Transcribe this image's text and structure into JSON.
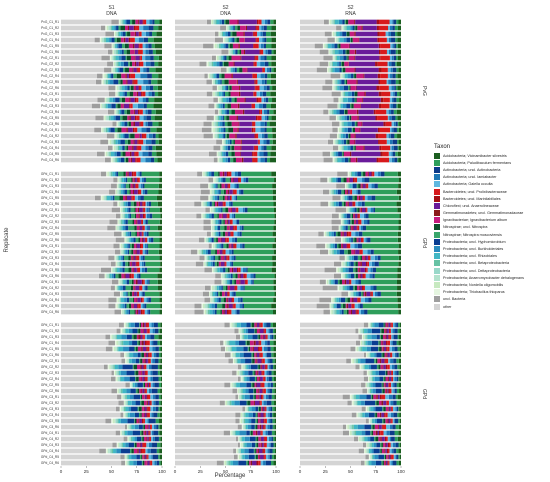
{
  "chart_data": {
    "type": "bar",
    "orientation": "horizontal",
    "stacked": true,
    "xlabel": "Percentage",
    "ylabel": "Replicate",
    "xlim": [
      0,
      100
    ],
    "x_ticks": [
      "0",
      "25",
      "50",
      "75",
      "100"
    ],
    "columns": [
      {
        "strip1": "S1",
        "strip2": "DNA"
      },
      {
        "strip1": "S2",
        "strip2": "DNA"
      },
      {
        "strip1": "S2",
        "strip2": "RNA"
      }
    ],
    "rows": [
      "PvG",
      "GPd",
      "GPd"
    ],
    "row_replicates": [
      [
        "PvG_C1_R1",
        "PvG_C1_R2",
        "PvG_C1_R3",
        "PvG_C1_R4",
        "PvG_C1_R5",
        "PvG_C1_R6",
        "PvG_C2_R1",
        "PvG_C2_R2",
        "PvG_C2_R3",
        "PvG_C2_R4",
        "PvG_C2_R5",
        "PvG_C2_R6",
        "PvG_C3_R1",
        "PvG_C3_R2",
        "PvG_C3_R3",
        "PvG_C3_R4",
        "PvG_C3_R5",
        "PvG_C3_R6",
        "PvG_C4_R1",
        "PvG_C4_R2",
        "PvG_C4_R3",
        "PvG_C4_R4",
        "PvG_C4_R5",
        "PvG_C4_R6"
      ],
      [
        "GPd_C1_R1",
        "GPd_C1_R2",
        "GPd_C1_R3",
        "GPd_C1_R4",
        "GPd_C1_R5",
        "GPd_C1_R6",
        "GPd_C2_R1",
        "GPd_C2_R2",
        "GPd_C2_R3",
        "GPd_C2_R4",
        "GPd_C2_R5",
        "GPd_C2_R6",
        "GPd_C3_R1",
        "GPd_C3_R2",
        "GPd_C3_R3",
        "GPd_C3_R4",
        "GPd_C3_R5",
        "GPd_C3_R6",
        "GPd_C4_R1",
        "GPd_C4_R2",
        "GPd_C4_R3",
        "GPd_C4_R4",
        "GPd_C4_R5",
        "GPd_C4_R6"
      ],
      [
        "GPd_C1_R1",
        "GPd_C1_R2",
        "GPd_C1_R3",
        "GPd_C1_R4",
        "GPd_C1_R5",
        "GPd_C1_R6",
        "GPd_C2_R1",
        "GPd_C2_R2",
        "GPd_C2_R3",
        "GPd_C2_R4",
        "GPd_C2_R5",
        "GPd_C2_R6",
        "GPd_C3_R1",
        "GPd_C3_R2",
        "GPd_C3_R3",
        "GPd_C3_R4",
        "GPd_C3_R5",
        "GPd_C3_R6",
        "GPd_C4_R1",
        "GPd_C4_R2",
        "GPd_C4_R3",
        "GPd_C4_R4",
        "GPd_C4_R5",
        "GPd_C4_R6"
      ]
    ],
    "legend_title": "Taxon",
    "series": [
      {
        "name": "Acidobacteria; Vicinamibacter silvestris",
        "color": "#1b5e20"
      },
      {
        "name": "Acidobacteria; Paludibaculum fermentans",
        "color": "#2e9e5b"
      },
      {
        "name": "Actinobacteria; uncl. Actinobacteria",
        "color": "#0d3b8a"
      },
      {
        "name": "Actinobacteria; uncl. Iamiabacter",
        "color": "#1f77b4"
      },
      {
        "name": "Actinobacteria; Gaiella occulta",
        "color": "#5fb8e0"
      },
      {
        "name": "Bacteroidetes; uncl. Prolixibacteraceae",
        "color": "#d7191c"
      },
      {
        "name": "Bacteroidetes; uncl. Marinilabiliales",
        "color": "#a50f15"
      },
      {
        "name": "Chloroflexi; uncl. Anaerolineaceae",
        "color": "#6a1b9a"
      },
      {
        "name": "Gemmatimonadetes; uncl. Gemmatimonadaceae",
        "color": "#8b1a1a"
      },
      {
        "name": "Ignavibacteriae; Ignavibacterium album",
        "color": "#c51b7d"
      },
      {
        "name": "Nitrospirae; uncl. Nitrospira",
        "color": "#0b4f2a"
      },
      {
        "name": "Nitrospirae; Nitrospira moscoviensis",
        "color": "#3aa66b"
      },
      {
        "name": "Proteobacteria; uncl. Hyphomicrobium",
        "color": "#0a3d91"
      },
      {
        "name": "Proteobacteria; uncl. Burkholderiales",
        "color": "#2b8cbe"
      },
      {
        "name": "Proteobacteria; uncl. Rhizobiales",
        "color": "#41b6c4"
      },
      {
        "name": "Proteobacteria; uncl. Betaproteobacteria",
        "color": "#66c2a4"
      },
      {
        "name": "Proteobacteria; uncl. Deltaproteobacteria",
        "color": "#99d8c9"
      },
      {
        "name": "Proteobacteria; Anaeromyxobacter dehalogenans",
        "color": "#b3e2cd"
      },
      {
        "name": "Proteobacteria; Nordella oligomobilis",
        "color": "#c7e9c0"
      },
      {
        "name": "Proteobacteria; Thiobacillus thioparus",
        "color": "#e5f5e0"
      },
      {
        "name": "uncl. Bacteria",
        "color": "#9e9e9e"
      },
      {
        "name": "other",
        "color": "#d4d4d4"
      }
    ],
    "profiles": [
      [
        {
          "values": [
            5,
            4,
            3,
            4,
            3,
            3,
            1,
            3,
            1,
            3,
            3,
            2,
            3,
            2,
            2,
            1,
            1,
            1,
            1,
            1,
            6,
            43
          ]
        },
        {
          "values": [
            4,
            4,
            3,
            3,
            3,
            3,
            1,
            14,
            1,
            6,
            3,
            2,
            2,
            2,
            2,
            1,
            1,
            1,
            1,
            1,
            6,
            37
          ]
        },
        {
          "values": [
            3,
            2,
            3,
            2,
            2,
            8,
            2,
            22,
            1,
            6,
            2,
            1,
            3,
            3,
            3,
            1,
            1,
            1,
            1,
            1,
            8,
            24
          ]
        }
      ],
      [
        {
          "values": [
            3,
            12,
            2,
            2,
            2,
            2,
            1,
            3,
            1,
            2,
            2,
            4,
            2,
            2,
            2,
            1,
            1,
            1,
            1,
            1,
            7,
            46
          ]
        },
        {
          "values": [
            3,
            30,
            2,
            2,
            3,
            2,
            1,
            3,
            1,
            2,
            2,
            3,
            2,
            2,
            2,
            1,
            1,
            1,
            1,
            1,
            6,
            27
          ]
        },
        {
          "values": [
            3,
            26,
            3,
            3,
            3,
            2,
            1,
            3,
            1,
            2,
            2,
            2,
            3,
            2,
            2,
            1,
            1,
            1,
            1,
            1,
            9,
            28
          ]
        }
      ],
      [
        {
          "values": [
            2,
            2,
            4,
            2,
            2,
            2,
            1,
            2,
            1,
            2,
            2,
            1,
            6,
            4,
            3,
            1,
            1,
            1,
            1,
            1,
            4,
            56
          ]
        },
        {
          "values": [
            2,
            2,
            3,
            2,
            2,
            2,
            1,
            3,
            1,
            2,
            2,
            1,
            5,
            4,
            3,
            1,
            1,
            1,
            1,
            1,
            4,
            57
          ]
        },
        {
          "values": [
            2,
            2,
            3,
            2,
            2,
            2,
            1,
            2,
            1,
            2,
            2,
            1,
            6,
            4,
            3,
            1,
            1,
            1,
            1,
            1,
            4,
            57
          ]
        }
      ]
    ]
  }
}
